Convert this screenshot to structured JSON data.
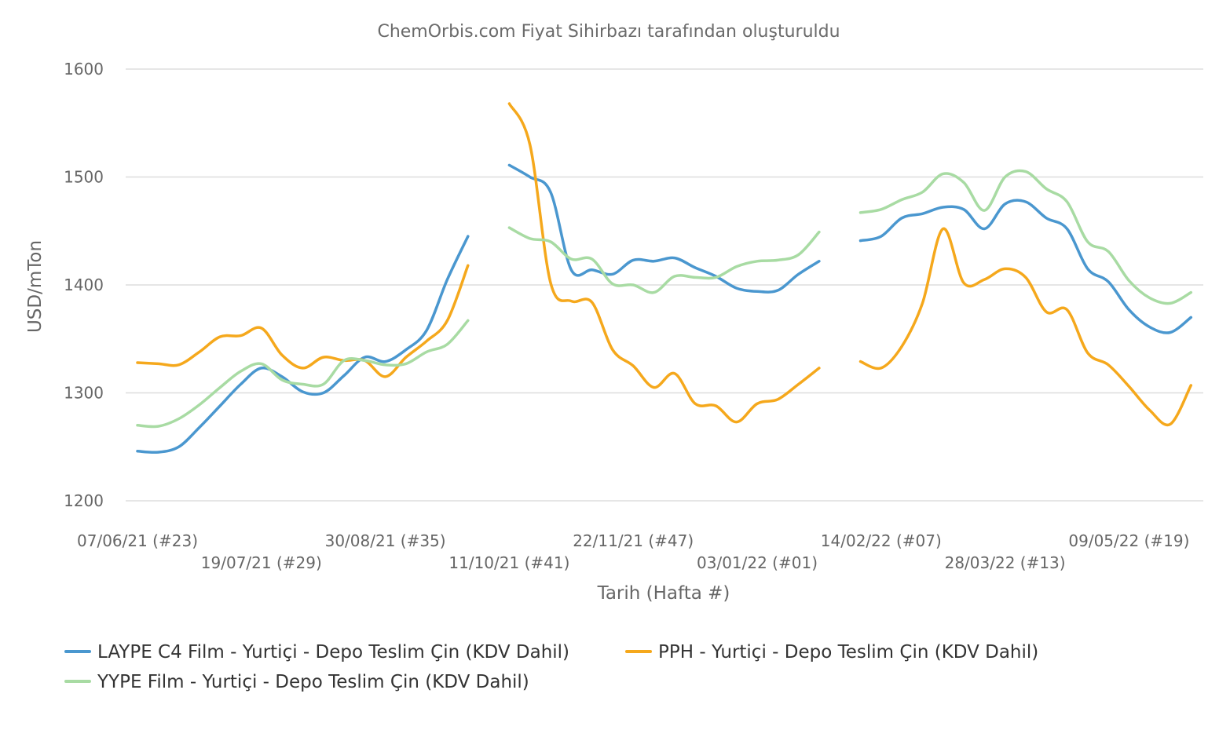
{
  "chart_data": {
    "type": "line",
    "title": "ChemOrbis.com Fiyat Sihirbazı tarafından oluşturuldu",
    "xlabel": "Tarih (Hafta #)",
    "ylabel": "USD/mTon",
    "ylim": [
      1200,
      1600
    ],
    "yticks": [
      1200,
      1300,
      1400,
      1500,
      1600
    ],
    "grid": true,
    "legend_position": "bottom-left",
    "xticks": [
      {
        "label": "07/06/21 (#23)",
        "week_index": 0
      },
      {
        "label": "19/07/21 (#29)",
        "week_index": 6
      },
      {
        "label": "30/08/21 (#35)",
        "week_index": 12
      },
      {
        "label": "11/10/21 (#41)",
        "week_index": 18
      },
      {
        "label": "22/11/21 (#47)",
        "week_index": 24
      },
      {
        "label": "03/01/22 (#01)",
        "week_index": 30
      },
      {
        "label": "14/02/22 (#07)",
        "week_index": 36
      },
      {
        "label": "28/03/22 (#13)",
        "week_index": 42
      },
      {
        "label": "09/05/22 (#19)",
        "week_index": 48
      }
    ],
    "x_weeks": [
      0,
      1,
      2,
      3,
      4,
      5,
      6,
      7,
      8,
      9,
      10,
      11,
      12,
      13,
      14,
      15,
      16,
      17,
      18,
      19,
      20,
      21,
      22,
      23,
      24,
      25,
      26,
      27,
      28,
      29,
      30,
      31,
      32,
      33,
      34,
      35,
      36,
      37,
      38,
      39,
      40,
      41,
      42,
      43,
      44,
      45,
      46,
      47,
      48,
      49,
      50,
      51,
      52,
      53
    ],
    "series": [
      {
        "name": "LAYPE C4 Film - Yurtiçi  - Depo Teslim Çin  (KDV Dahil)",
        "color": "#4a97cf",
        "values": [
          1246,
          1245,
          1250,
          1268,
          1288,
          1308,
          1323,
          1315,
          1301,
          1300,
          1316,
          1333,
          1329,
          1340,
          1358,
          1405,
          1445,
          null,
          1511,
          1500,
          1486,
          1414,
          1414,
          1410,
          1423,
          1422,
          1425,
          1416,
          1408,
          1397,
          1394,
          1395,
          1410,
          1422,
          null,
          1441,
          1445,
          1462,
          1466,
          1472,
          1470,
          1452,
          1475,
          1477,
          1462,
          1452,
          1415,
          1403,
          1377,
          1361,
          1356,
          1370,
          null,
          null
        ]
      },
      {
        "name": "PPH - Yurtiçi  - Depo Teslim Çin  (KDV Dahil)",
        "color": "#f5a81c",
        "values": [
          1328,
          1327,
          1326,
          1338,
          1352,
          1353,
          1360,
          1335,
          1323,
          1333,
          1330,
          1330,
          1315,
          1333,
          1348,
          1367,
          1418,
          null,
          1568,
          1530,
          1402,
          1385,
          1384,
          1340,
          1325,
          1305,
          1318,
          1290,
          1288,
          1273,
          1290,
          1294,
          1308,
          1323,
          null,
          1329,
          1323,
          1343,
          1383,
          1452,
          1402,
          1405,
          1415,
          1407,
          1375,
          1377,
          1337,
          1326,
          1306,
          1284,
          1271,
          1307,
          null,
          null
        ]
      },
      {
        "name": "YYPE Film - Yurtiçi  - Depo Teslim Çin  (KDV Dahil)",
        "color": "#a8dba3",
        "values": [
          1270,
          1269,
          1276,
          1289,
          1305,
          1320,
          1327,
          1312,
          1308,
          1308,
          1330,
          1330,
          1326,
          1327,
          1338,
          1345,
          1367,
          null,
          1453,
          1443,
          1440,
          1424,
          1424,
          1401,
          1400,
          1393,
          1408,
          1407,
          1407,
          1417,
          1422,
          1423,
          1428,
          1449,
          null,
          1467,
          1470,
          1479,
          1486,
          1503,
          1495,
          1469,
          1500,
          1505,
          1489,
          1477,
          1440,
          1431,
          1404,
          1388,
          1383,
          1393,
          null,
          null
        ]
      }
    ]
  }
}
